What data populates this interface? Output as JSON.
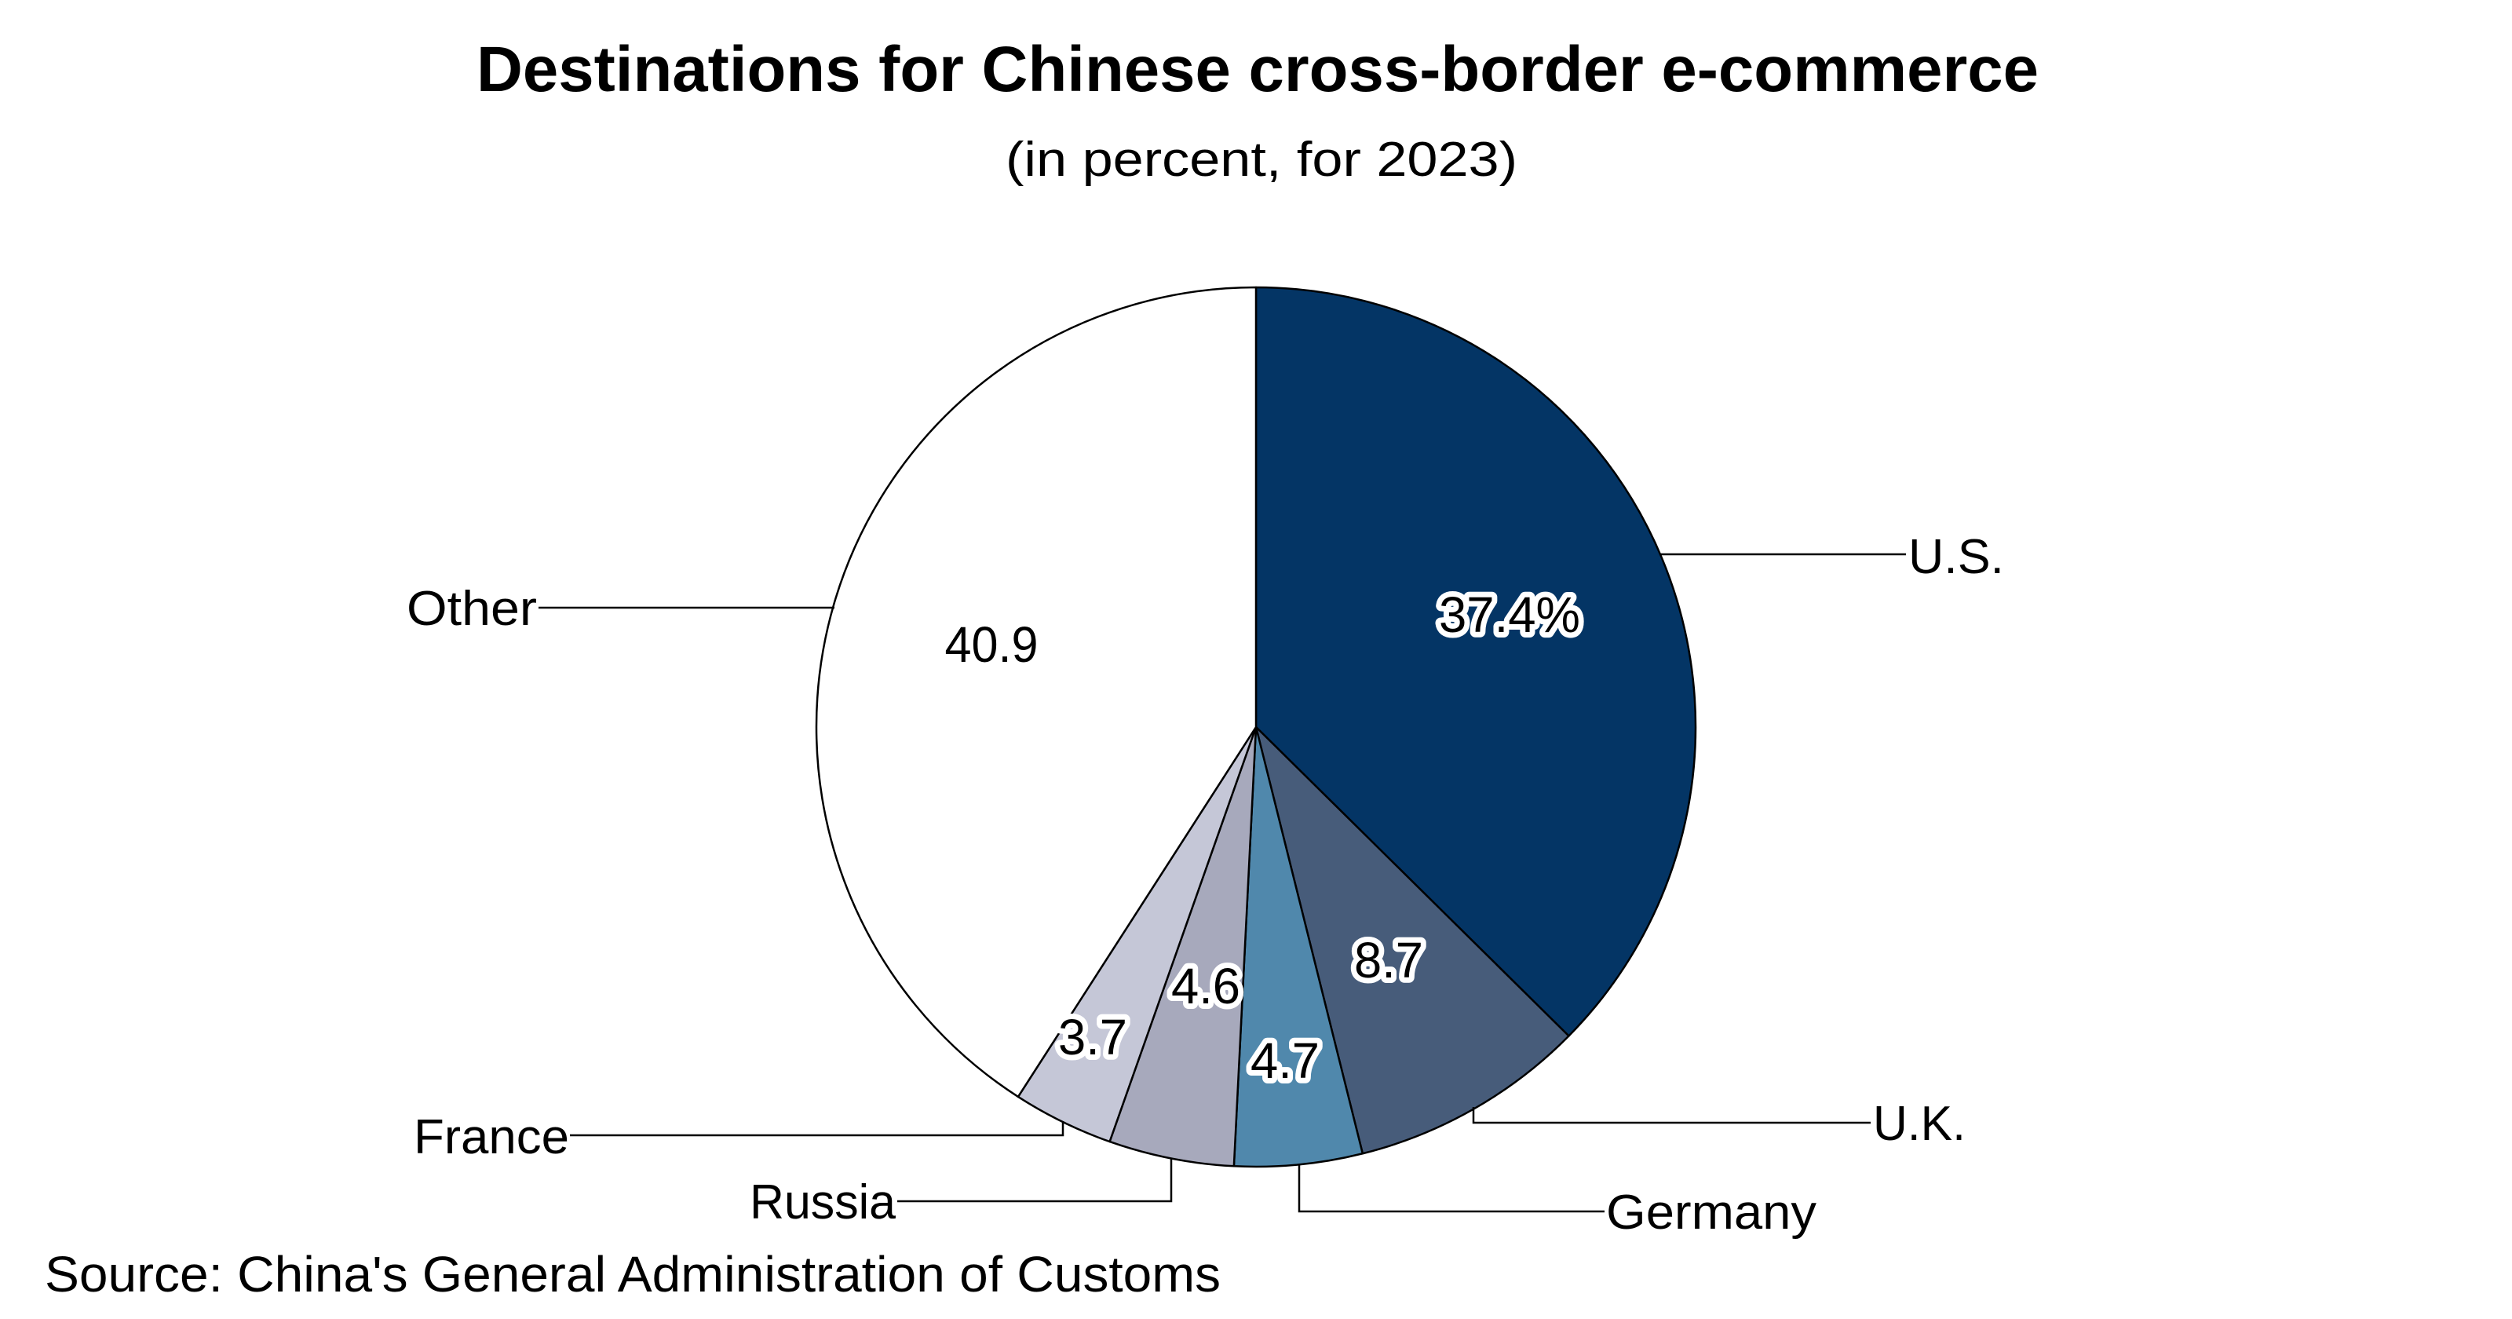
{
  "chart_data": {
    "type": "pie",
    "title": "Destinations for Chinese cross-border e-commerce",
    "subtitle": "(in percent, for 2023)",
    "source": "Source: China's General Administration of Customs",
    "start": "top",
    "direction": "clockwise",
    "slices": [
      {
        "label": "U.S.",
        "value": 37.4,
        "value_label": "37.4%",
        "color": "#043565",
        "halo": true
      },
      {
        "label": "U.K.",
        "value": 8.7,
        "value_label": "8.7",
        "color": "#475c7a",
        "halo": true
      },
      {
        "label": "Germany",
        "value": 4.7,
        "value_label": "4.7",
        "color": "#5088ac",
        "halo": true
      },
      {
        "label": "Russia",
        "value": 4.6,
        "value_label": "4.6",
        "color": "#a7a9bc",
        "halo": true
      },
      {
        "label": "France",
        "value": 3.7,
        "value_label": "3.7",
        "color": "#c5c7d7",
        "halo": true
      },
      {
        "label": "Other",
        "value": 40.9,
        "value_label": "40.9",
        "color": "#ffffff",
        "halo": false
      }
    ]
  }
}
